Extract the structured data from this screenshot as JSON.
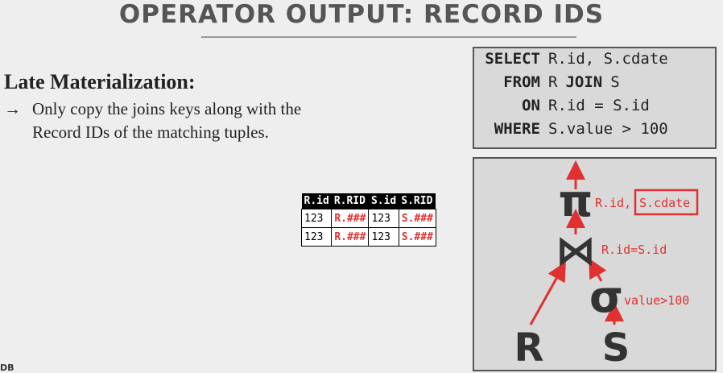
{
  "header": {
    "title": "OPERATOR OUTPUT: RECORD IDS"
  },
  "body": {
    "heading": "Late Materialization:",
    "bullet_marker": "→",
    "bullet_lines": [
      "Only copy the joins keys along with the",
      "Record IDs of the matching tuples."
    ]
  },
  "sql": {
    "lines": [
      [
        "SELECT",
        "R.id, S.cdate"
      ],
      [
        "FROM",
        "R",
        "JOIN",
        "S"
      ],
      [
        "ON",
        "R.id = S.id"
      ],
      [
        "WHERE",
        "S.value > 100"
      ]
    ]
  },
  "table": {
    "header": [
      "R.id",
      "R.RID",
      "S.id",
      "S.RID"
    ],
    "rows": [
      [
        "123",
        "R.###",
        "123",
        "S.###"
      ],
      [
        "123",
        "R.###",
        "123",
        "S.###"
      ]
    ]
  },
  "plan": {
    "projection": "π",
    "projection_label": "R.id,",
    "projection_highlight": "S.cdate",
    "join": "⋈",
    "join_label": "R.id=S.id",
    "selection": "σ",
    "selection_label": "value>100",
    "left": "R",
    "right": "S"
  },
  "footer": {
    "text": "DB"
  }
}
